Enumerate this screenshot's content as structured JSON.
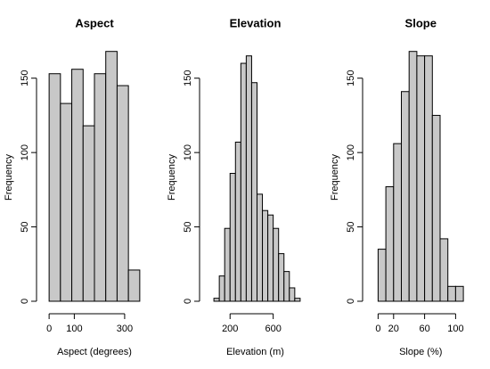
{
  "chart_data": [
    {
      "type": "histogram",
      "title": "Aspect",
      "x_label": "Aspect (degrees)",
      "y_label": "Frequency",
      "bins": [
        0,
        45,
        90,
        135,
        180,
        225,
        270,
        315,
        360
      ],
      "values": [
        153,
        133,
        156,
        118,
        153,
        168,
        145,
        21
      ],
      "color": "#c8c8c8",
      "xlim": [
        -50,
        410
      ],
      "xticks": [
        0,
        100,
        300
      ],
      "ylim": [
        -8.4,
        181
      ],
      "yticks": [
        0,
        50,
        100,
        150
      ]
    },
    {
      "type": "histogram",
      "title": "Elevation",
      "x_label": "Elevation (m)",
      "y_label": "Frequency",
      "bins": [
        50,
        100,
        150,
        200,
        250,
        300,
        350,
        400,
        450,
        500,
        550,
        600,
        650,
        700,
        750,
        800,
        850
      ],
      "values": [
        2,
        17,
        49,
        86,
        107,
        160,
        165,
        147,
        72,
        61,
        58,
        49,
        32,
        20,
        9,
        2
      ],
      "color": "#c8c8c8",
      "xlim": [
        -83,
        950
      ],
      "xticks": [
        200,
        600
      ],
      "ylim": [
        -8.4,
        181
      ],
      "yticks": [
        0,
        50,
        100,
        150
      ]
    },
    {
      "type": "histogram",
      "title": "Slope",
      "x_label": "Slope (%)",
      "y_label": "Frequency",
      "bins": [
        0,
        10,
        20,
        30,
        40,
        50,
        60,
        70,
        80,
        90,
        100,
        110
      ],
      "values": [
        35,
        77,
        106,
        141,
        168,
        165,
        165,
        125,
        42,
        10,
        10
      ],
      "color": "#c8c8c8",
      "xlim": [
        -20,
        130
      ],
      "xticks": [
        0,
        20,
        60,
        100
      ],
      "ylim": [
        -8.4,
        181
      ],
      "yticks": [
        0,
        50,
        100,
        150
      ]
    }
  ]
}
